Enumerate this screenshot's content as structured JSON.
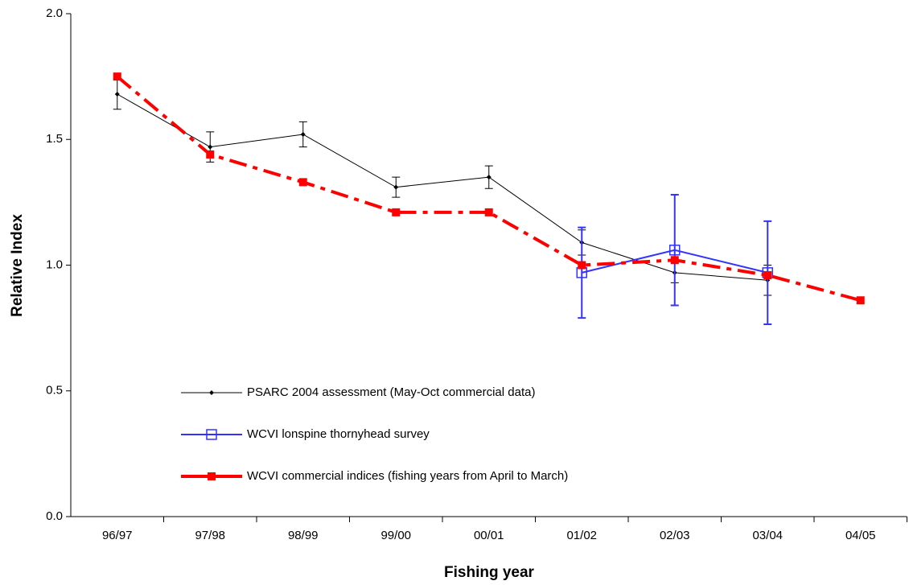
{
  "chart_data": {
    "type": "line",
    "x_label": "Fishing year",
    "y_label": "Relative Index",
    "categories": [
      "96/97",
      "97/98",
      "98/99",
      "99/00",
      "00/01",
      "01/02",
      "02/03",
      "03/04",
      "04/05"
    ],
    "series": [
      {
        "name": "PSARC 2004 assessment (May-Oct commercial data)",
        "color": "#000000",
        "marker": "diamond",
        "values": [
          1.68,
          1.47,
          1.52,
          1.31,
          1.35,
          1.09,
          0.97,
          0.94,
          null
        ],
        "errors": [
          0.06,
          0.06,
          0.05,
          0.04,
          0.045,
          0.05,
          0.04,
          0.06,
          null
        ]
      },
      {
        "name": "WCVI lonspine thornyhead survey",
        "color": "#3333ff",
        "marker": "open-square",
        "values": [
          null,
          null,
          null,
          null,
          null,
          0.97,
          1.06,
          0.97,
          null
        ],
        "errors": [
          null,
          null,
          null,
          null,
          null,
          0.18,
          0.22,
          0.205,
          null
        ]
      },
      {
        "name": "WCVI commercial indices (fishing years from April to March)",
        "color": "#ff0000",
        "marker": "square",
        "dashed": true,
        "values": [
          1.75,
          1.44,
          1.33,
          1.21,
          1.21,
          1.0,
          1.02,
          0.96,
          0.86
        ]
      }
    ],
    "ylim": [
      0,
      2
    ],
    "yticks": [
      {
        "value": 0,
        "label": "0.0"
      },
      0.5,
      {
        "value": 1,
        "label": "1.0"
      },
      1.5,
      {
        "value": 2,
        "label": "2.0"
      }
    ],
    "grid": false,
    "legend": "lower left"
  }
}
